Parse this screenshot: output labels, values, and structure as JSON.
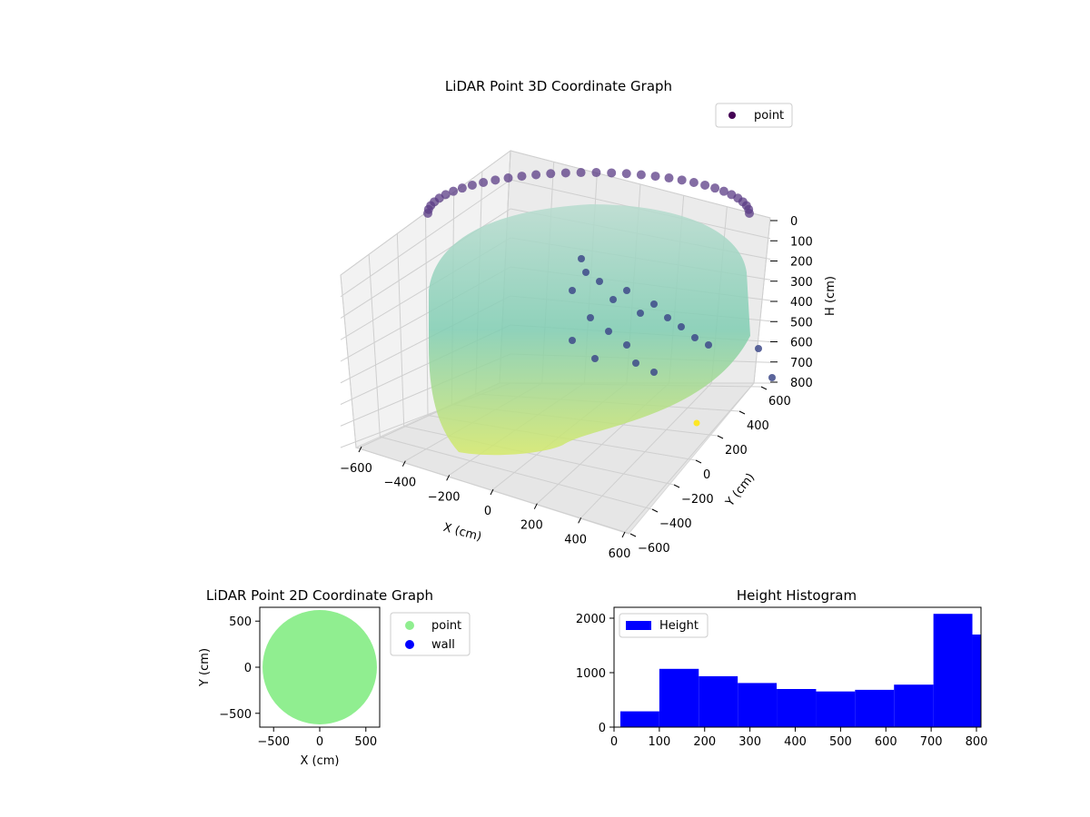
{
  "chart_data": [
    {
      "type": "scatter",
      "projection": "3d",
      "title": "LiDAR Point 3D Coordinate Graph",
      "xlabel": "X (cm)",
      "ylabel": "Y (cm)",
      "zlabel": "H (cm)",
      "xlim": [
        -650,
        650
      ],
      "ylim": [
        -650,
        650
      ],
      "zlim": [
        800,
        0
      ],
      "z_axis_inverted": true,
      "x_ticks": [
        "−600",
        "−400",
        "−200",
        "0",
        "200",
        "400",
        "600"
      ],
      "y_ticks": [
        "−600",
        "−400",
        "−200",
        "0",
        "200",
        "400",
        "600"
      ],
      "z_ticks": [
        "0",
        "100",
        "200",
        "300",
        "400",
        "500",
        "600",
        "700",
        "800"
      ],
      "colormap": "viridis",
      "color_by": "height",
      "legend": [
        {
          "label": "point",
          "color": "#440154"
        }
      ],
      "legend_position": "top-right",
      "grid": true,
      "description_of_points": "Cylindrical wall of points, radius about 600 cm, spanning heights 0–800 cm, plus an interior cluster of points"
    },
    {
      "type": "scatter",
      "title": "LiDAR Point 2D Coordinate Graph",
      "xlabel": "X (cm)",
      "ylabel": "Y (cm)",
      "xlim": [
        -650,
        650
      ],
      "ylim": [
        -650,
        650
      ],
      "x_ticks": [
        "−500",
        "0",
        "500"
      ],
      "y_ticks": [
        "−500",
        "0",
        "500"
      ],
      "series": [
        {
          "name": "point",
          "color": "#90ee90",
          "shape": "filled disk, radius about 620 cm"
        },
        {
          "name": "wall",
          "color": "#0000ff"
        }
      ],
      "legend_position": "outside-right"
    },
    {
      "type": "bar",
      "title": "Height Histogram",
      "xlim": [
        0,
        810
      ],
      "ylim": [
        0,
        2200
      ],
      "x_ticks": [
        "0",
        "100",
        "200",
        "300",
        "400",
        "500",
        "600",
        "700",
        "800"
      ],
      "y_ticks": [
        "0",
        "1000",
        "2000"
      ],
      "color": "#0000ff",
      "legend": [
        {
          "label": "Height",
          "color": "#0000ff"
        }
      ],
      "legend_position": "top-left",
      "bins": [
        {
          "from": 14,
          "to": 100,
          "count": 290
        },
        {
          "from": 100,
          "to": 187,
          "count": 1070
        },
        {
          "from": 187,
          "to": 273,
          "count": 935
        },
        {
          "from": 273,
          "to": 359,
          "count": 810
        },
        {
          "from": 359,
          "to": 446,
          "count": 700
        },
        {
          "from": 446,
          "to": 532,
          "count": 655
        },
        {
          "from": 532,
          "to": 618,
          "count": 685
        },
        {
          "from": 618,
          "to": 705,
          "count": 780
        },
        {
          "from": 705,
          "to": 791,
          "count": 2080
        },
        {
          "from": 791,
          "to": 810,
          "count": 1700
        }
      ]
    }
  ]
}
